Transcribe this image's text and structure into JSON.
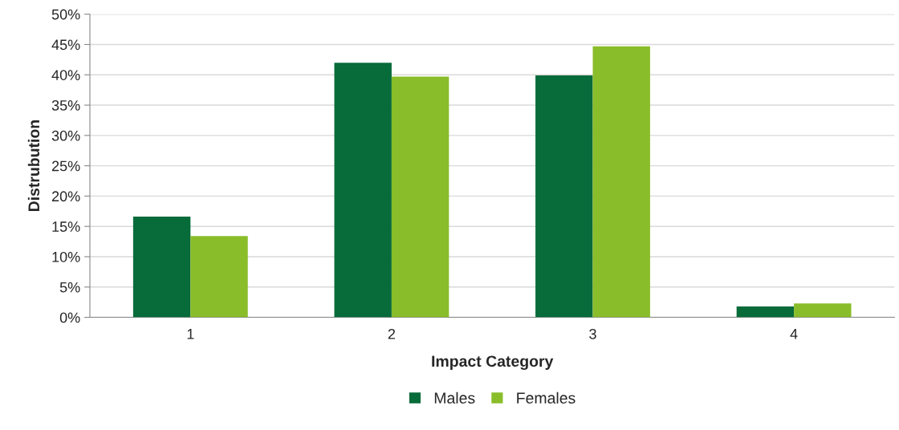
{
  "chart_data": {
    "type": "bar",
    "xlabel": "Impact Category",
    "ylabel": "Distrubution",
    "categories": [
      "1",
      "2",
      "3",
      "4"
    ],
    "series": [
      {
        "name": "Males",
        "color": "#076b3a",
        "values": [
          16.6,
          42.0,
          39.9,
          1.8
        ]
      },
      {
        "name": "Females",
        "color": "#8abd2a",
        "values": [
          13.4,
          39.7,
          44.7,
          2.3
        ]
      }
    ],
    "ylim": [
      0,
      50
    ],
    "yticks": [
      {
        "value": 0,
        "label": "0%"
      },
      {
        "value": 5,
        "label": "5%"
      },
      {
        "value": 10,
        "label": "10%"
      },
      {
        "value": 15,
        "label": "15%"
      },
      {
        "value": 20,
        "label": "20%"
      },
      {
        "value": 25,
        "label": "25%"
      },
      {
        "value": 30,
        "label": "30%"
      },
      {
        "value": 35,
        "label": "35%"
      },
      {
        "value": 40,
        "label": "40%"
      },
      {
        "value": 45,
        "label": "45%"
      },
      {
        "value": 50,
        "label": "50%"
      }
    ],
    "grid": "y",
    "legend": "bottom"
  }
}
